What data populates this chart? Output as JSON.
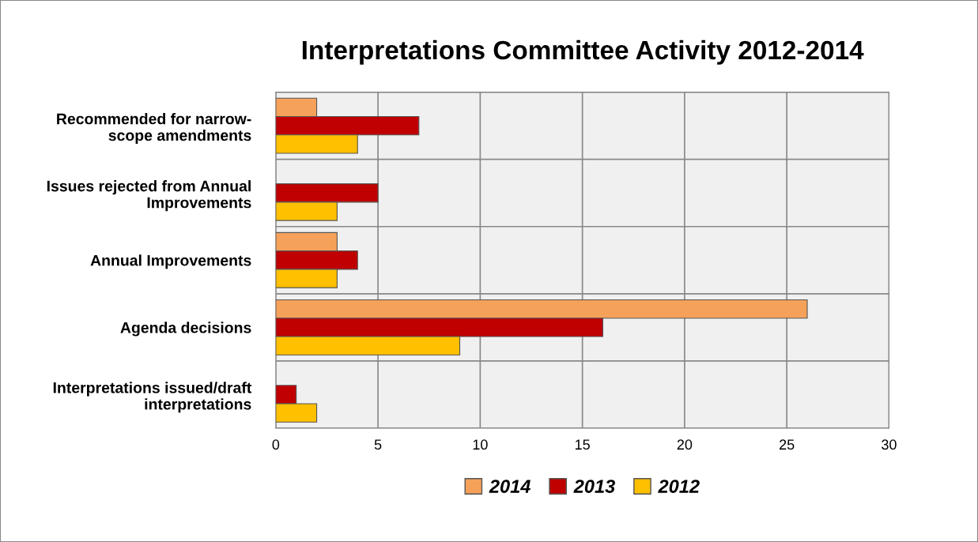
{
  "chart_data": {
    "type": "bar",
    "orientation": "horizontal",
    "title": "Interpretations Committee Activity 2012-2014",
    "categories": [
      "Recommended for narrow-\nscope amendments",
      "Issues rejected from Annual\nImprovements",
      "Annual Improvements",
      "Agenda decisions",
      "Interpretations issued/draft\ninterpretations"
    ],
    "series": [
      {
        "name": "2014",
        "color": "#f5a15a",
        "values": [
          2,
          null,
          3,
          26,
          null
        ]
      },
      {
        "name": "2013",
        "color": "#c00000",
        "values": [
          7,
          5,
          4,
          16,
          1
        ]
      },
      {
        "name": "2012",
        "color": "#ffc000",
        "values": [
          4,
          3,
          3,
          9,
          2
        ]
      }
    ],
    "xlim": [
      0,
      30
    ],
    "xticks": [
      0,
      5,
      10,
      15,
      20,
      25,
      30
    ],
    "grid": true,
    "legend": "bottom"
  }
}
